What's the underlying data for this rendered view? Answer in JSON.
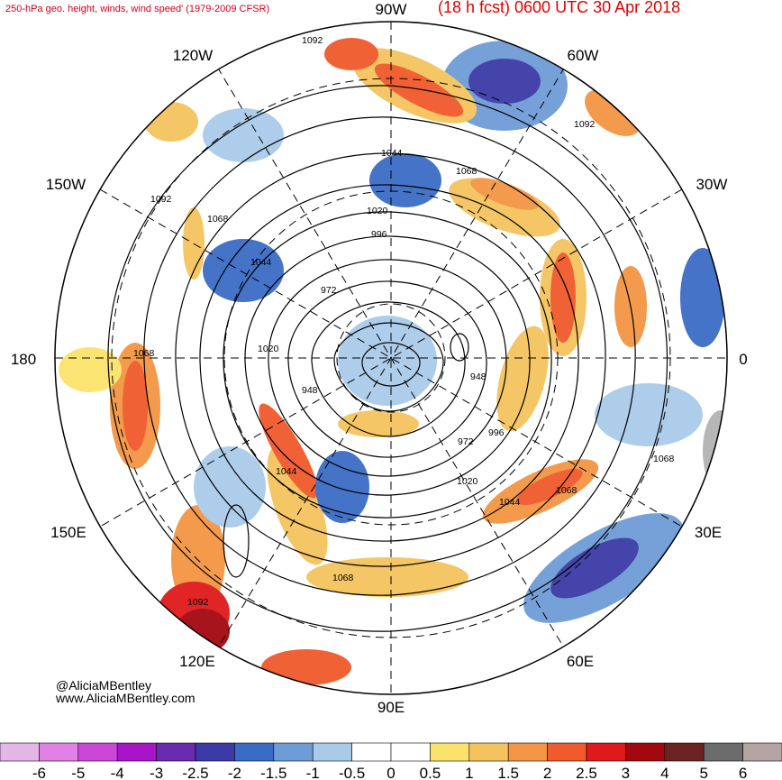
{
  "header": {
    "left_title": "250-hPa geo. height, winds, wind speed' (1979-2009 CFSR)",
    "right_title": "(18 h fcst) 0600 UTC 30 Apr 2018"
  },
  "credits": {
    "handle": "@AliciaMBentley",
    "website": "www.AliciaMBentley.com"
  },
  "longitude_labels": {
    "top": "90W",
    "top_left": "120W",
    "top_right": "60W",
    "upper_left": "150W",
    "upper_right": "30W",
    "left": "180",
    "right": "0",
    "lower_left": "150E",
    "lower_right": "30E",
    "bottom_left": "120E",
    "bottom_right": "60E",
    "bottom": "90E"
  },
  "height_contour_labels": [
    "1092",
    "1092",
    "1092",
    "1092",
    "1068",
    "1068",
    "1068",
    "1068",
    "1068",
    "1068",
    "1044",
    "1044",
    "1044",
    "1044",
    "1020",
    "1020",
    "1020",
    "996",
    "996",
    "972",
    "972",
    "948",
    "948"
  ],
  "colorbar": {
    "ticks": [
      "-6",
      "-5",
      "-4",
      "-3",
      "-2.5",
      "-2",
      "-1.5",
      "-1",
      "-0.5",
      "0",
      "0.5",
      "1",
      "1.5",
      "2",
      "2.5",
      "3",
      "4",
      "5",
      "6"
    ],
    "colors": [
      "#e3b6e6",
      "#e07fe4",
      "#cb46d9",
      "#a815c8",
      "#6a2bb0",
      "#3c3aa6",
      "#3a6cc6",
      "#6e9cd6",
      "#a9cbe9",
      "#ffffff",
      "#ffffff",
      "#fbe36b",
      "#f4c35d",
      "#f39544",
      "#f05a2c",
      "#e0191a",
      "#a4080f",
      "#6c2323",
      "#6c6c6c",
      "#b3a3a3"
    ]
  }
}
